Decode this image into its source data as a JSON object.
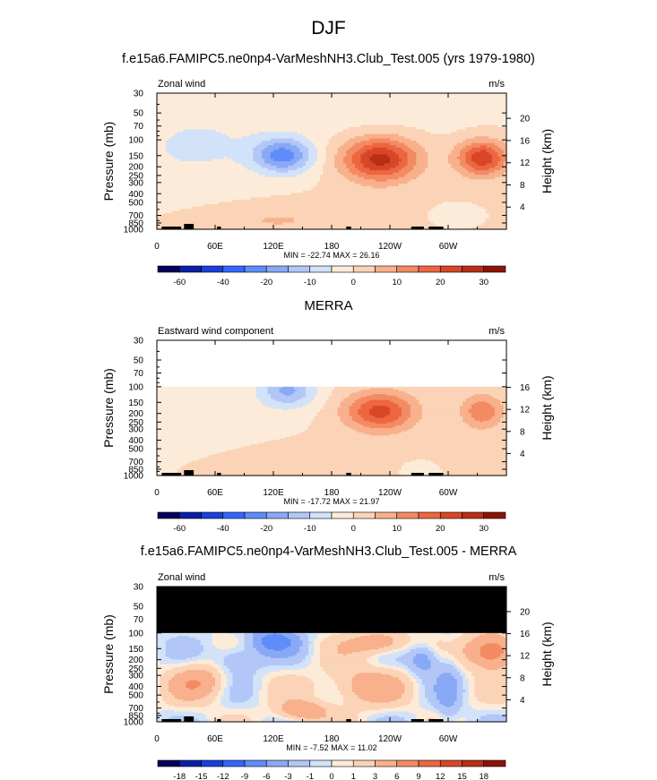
{
  "page": {
    "main_title": "DJF",
    "case_title": "f.e15a6.FAMIPC5.ne0np4-VarMeshNH3.Club_Test.005 (yrs 1979-1980)",
    "merra_title": "MERRA",
    "diff_title": "f.e15a6.FAMIPC5.ne0np4-VarMeshNH3.Club_Test.005 - MERRA"
  },
  "chart_data": [
    {
      "type": "heatmap",
      "panel": "model",
      "left_label": "Zonal wind",
      "units": "m/s",
      "ylabel": "Pressure (mb)",
      "ylabel_right": "Height (km)",
      "x_ticks": [
        "0",
        "60E",
        "120E",
        "180",
        "120W",
        "60W"
      ],
      "x_tick_values": [
        0,
        60,
        120,
        180,
        240,
        300
      ],
      "xlim": [
        0,
        360
      ],
      "y_ticks": [
        "30",
        "50",
        "70",
        "100",
        "150",
        "200",
        "250",
        "300",
        "400",
        "500",
        "700",
        "850",
        "1000"
      ],
      "y_tick_values": [
        30,
        50,
        70,
        100,
        150,
        200,
        250,
        300,
        400,
        500,
        700,
        850,
        1000
      ],
      "ylim": [
        1000,
        30
      ],
      "y_scale": "log",
      "height_ticks": [
        "4",
        "8",
        "12",
        "16",
        "20"
      ],
      "height_tick_values_km": [
        4,
        8,
        12,
        16,
        20
      ],
      "stats": "MIN = -22.74   MAX = 26.16",
      "min": -22.74,
      "max": 26.16,
      "colorbar_labels": [
        "-60",
        "-40",
        "-20",
        "-10",
        "0",
        "10",
        "20",
        "30"
      ],
      "colorbar_boundaries": [
        -70,
        -60,
        -50,
        -40,
        -30,
        -20,
        -15,
        -10,
        -5,
        0,
        5,
        10,
        15,
        20,
        25,
        30,
        35
      ],
      "colorbar_colors": [
        "#06005c",
        "#0a1fa6",
        "#1a40d8",
        "#3366ff",
        "#5f8cf9",
        "#89a9f6",
        "#b2c7f7",
        "#d2e2f8",
        "#fdebd9",
        "#fbd3b6",
        "#f8b08d",
        "#f38a63",
        "#ec6640",
        "#d84628",
        "#b92e17",
        "#8a1405"
      ]
    },
    {
      "type": "heatmap",
      "panel": "obs",
      "left_label": "Eastward wind component",
      "units": "m/s",
      "ylabel": "Pressure (mb)",
      "ylabel_right": "Height (km)",
      "x_ticks": [
        "0",
        "60E",
        "120E",
        "180",
        "120W",
        "60W"
      ],
      "x_tick_values": [
        0,
        60,
        120,
        180,
        240,
        300
      ],
      "xlim": [
        0,
        360
      ],
      "y_ticks": [
        "30",
        "50",
        "70",
        "100",
        "150",
        "200",
        "250",
        "300",
        "400",
        "500",
        "700",
        "850",
        "1000"
      ],
      "y_tick_values": [
        30,
        50,
        70,
        100,
        150,
        200,
        250,
        300,
        400,
        500,
        700,
        850,
        1000
      ],
      "ylim": [
        1000,
        30
      ],
      "y_scale": "log",
      "height_ticks": [
        "4",
        "8",
        "12",
        "16"
      ],
      "height_tick_values_km": [
        4,
        8,
        12,
        16
      ],
      "data_top_mb": 100,
      "stats": "MIN = -17.72   MAX = 21.97",
      "min": -17.72,
      "max": 21.97,
      "colorbar_labels": [
        "-60",
        "-40",
        "-20",
        "-10",
        "0",
        "10",
        "20",
        "30"
      ],
      "colorbar_boundaries": [
        -70,
        -60,
        -50,
        -40,
        -30,
        -20,
        -15,
        -10,
        -5,
        0,
        5,
        10,
        15,
        20,
        25,
        30,
        35
      ],
      "colorbar_colors": [
        "#06005c",
        "#0a1fa6",
        "#1a40d8",
        "#3366ff",
        "#5f8cf9",
        "#89a9f6",
        "#b2c7f7",
        "#d2e2f8",
        "#fdebd9",
        "#fbd3b6",
        "#f8b08d",
        "#f38a63",
        "#ec6640",
        "#d84628",
        "#b92e17",
        "#8a1405"
      ]
    },
    {
      "type": "heatmap",
      "panel": "difference",
      "left_label": "Zonal wind",
      "units": "m/s",
      "ylabel": "Pressure (mb)",
      "ylabel_right": "Height (km)",
      "x_ticks": [
        "0",
        "60E",
        "120E",
        "180",
        "120W",
        "60W"
      ],
      "x_tick_values": [
        0,
        60,
        120,
        180,
        240,
        300
      ],
      "xlim": [
        0,
        360
      ],
      "y_ticks": [
        "30",
        "50",
        "70",
        "100",
        "150",
        "200",
        "250",
        "300",
        "400",
        "500",
        "700",
        "850",
        "1000"
      ],
      "y_tick_values": [
        30,
        50,
        70,
        100,
        150,
        200,
        250,
        300,
        400,
        500,
        700,
        850,
        1000
      ],
      "ylim": [
        1000,
        30
      ],
      "y_scale": "log",
      "height_ticks": [
        "4",
        "8",
        "12",
        "16",
        "20"
      ],
      "height_tick_values_km": [
        4,
        8,
        12,
        16,
        20
      ],
      "data_top_mb": 100,
      "stats": "MIN = -7.52   MAX = 11.02",
      "min": -7.52,
      "max": 11.02,
      "colorbar_labels": [
        "-18",
        "-15",
        "-12",
        "-9",
        "-6",
        "-3",
        "-1",
        "0",
        "1",
        "3",
        "6",
        "9",
        "12",
        "15",
        "18"
      ],
      "colorbar_boundaries": [
        -21,
        -18,
        -15,
        -12,
        -9,
        -6,
        -3,
        -1,
        0,
        1,
        3,
        6,
        9,
        12,
        15,
        18,
        21
      ],
      "colorbar_colors": [
        "#06005c",
        "#0a1fa6",
        "#1a40d8",
        "#3366ff",
        "#5f8cf9",
        "#89a9f6",
        "#b2c7f7",
        "#d2e2f8",
        "#fdebd9",
        "#fbd3b6",
        "#f8b08d",
        "#f38a63",
        "#ec6640",
        "#d84628",
        "#b92e17",
        "#8a1405"
      ]
    }
  ]
}
